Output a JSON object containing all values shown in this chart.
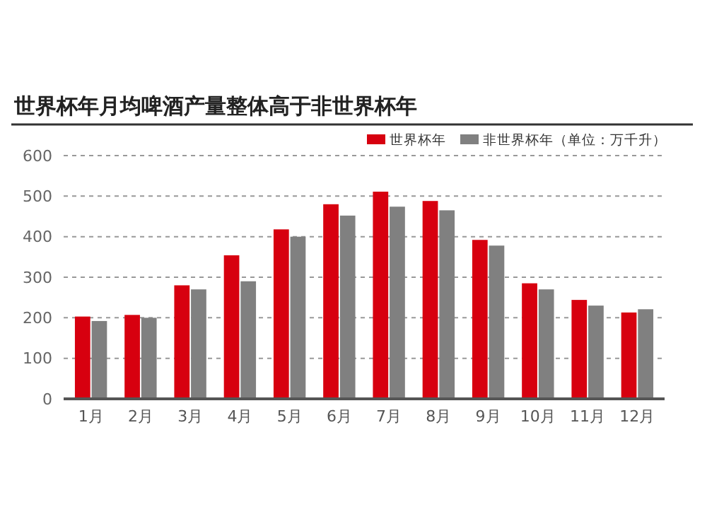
{
  "chart_data": {
    "type": "bar",
    "title": "世界杯年月均啤酒产量整体高于非世界杯年",
    "categories": [
      "1月",
      "2月",
      "3月",
      "4月",
      "5月",
      "6月",
      "7月",
      "8月",
      "9月",
      "10月",
      "11月",
      "12月"
    ],
    "series": [
      {
        "name": "世界杯年",
        "color": "#d7000f",
        "values": [
          203,
          207,
          280,
          354,
          418,
          480,
          511,
          488,
          392,
          285,
          244,
          213
        ]
      },
      {
        "name": "非世界杯年（单位：万千升）",
        "color": "#808080",
        "values": [
          192,
          200,
          270,
          290,
          400,
          452,
          474,
          465,
          378,
          270,
          230,
          221
        ]
      }
    ],
    "ylim": [
      0,
      600
    ],
    "yticks": [
      0,
      100,
      200,
      300,
      400,
      500,
      600
    ],
    "grid": "y",
    "legend": "top right"
  }
}
